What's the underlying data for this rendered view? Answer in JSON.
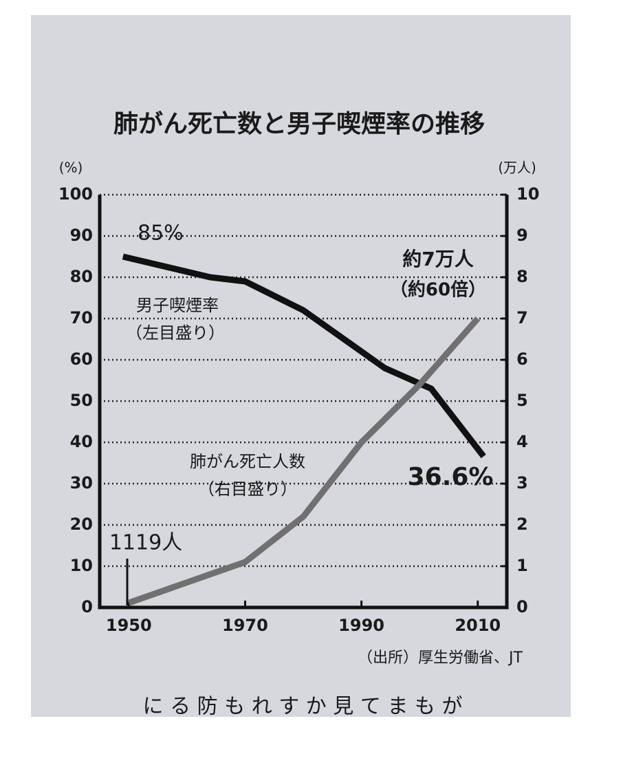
{
  "chart_data": {
    "type": "line",
    "title": "肺がん死亡数と男子喫煙率の推移",
    "y_unit": "(%)",
    "y2_unit": "(万人)",
    "source": "（出所）厚生労働省、JT",
    "xlim": [
      1945,
      2015
    ],
    "xticks": [
      1950,
      1970,
      1990,
      2010
    ],
    "ylim": [
      0,
      100
    ],
    "yticks": [
      0,
      10,
      20,
      30,
      40,
      50,
      60,
      70,
      80,
      90,
      100
    ],
    "y2lim": [
      0,
      10
    ],
    "y2ticks": [
      0,
      1,
      2,
      3,
      4,
      5,
      6,
      7,
      8,
      9,
      10
    ],
    "grid": true,
    "series": [
      {
        "name": "男子喫煙率",
        "color": "#111111",
        "x": [
          1949,
          1964,
          1970,
          1980,
          1994,
          2002,
          2011
        ],
        "values": [
          85,
          80,
          79,
          72,
          58,
          53,
          36.6
        ]
      },
      {
        "name": "肺がん死亡人数",
        "color": "#707070",
        "axis": "y2",
        "x": [
          1950,
          1970,
          1980,
          1990,
          2000,
          2010
        ],
        "values": [
          0.1119,
          1.1,
          2.2,
          4,
          5.4,
          7
        ]
      }
    ],
    "annotations": [
      "85%",
      "男子喫煙率",
      "（左目盛り）",
      "約7万人",
      "（約60倍）",
      "肺がん死亡人数",
      "（右目盛り）",
      "36.6%",
      "1119人"
    ]
  },
  "page_text": "に る 防 も れ す か 見 て ま も が"
}
